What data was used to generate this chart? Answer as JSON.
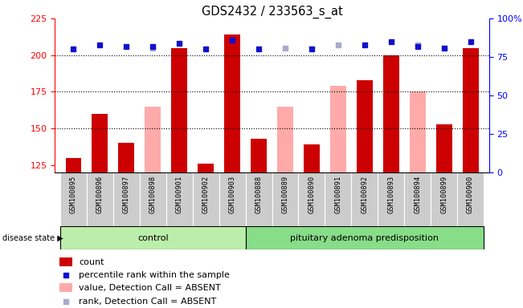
{
  "title": "GDS2432 / 233563_s_at",
  "samples": [
    "GSM100895",
    "GSM100896",
    "GSM100897",
    "GSM100898",
    "GSM100901",
    "GSM100902",
    "GSM100903",
    "GSM100888",
    "GSM100889",
    "GSM100890",
    "GSM100891",
    "GSM100892",
    "GSM100893",
    "GSM100894",
    "GSM100899",
    "GSM100900"
  ],
  "n_control": 7,
  "red_values": [
    130,
    160,
    140,
    null,
    205,
    126,
    214,
    143,
    null,
    139,
    null,
    183,
    200,
    null,
    153,
    205
  ],
  "pink_values": [
    null,
    null,
    null,
    165,
    null,
    null,
    null,
    null,
    165,
    null,
    179,
    null,
    null,
    175,
    null,
    null
  ],
  "blue_values": [
    204,
    207,
    206,
    206,
    208,
    204,
    210,
    204,
    null,
    204,
    null,
    207,
    209,
    206,
    205,
    209
  ],
  "lightblue_values": [
    null,
    null,
    null,
    205,
    null,
    null,
    null,
    null,
    205,
    null,
    207,
    null,
    null,
    207,
    null,
    null
  ],
  "ylim": [
    120,
    225
  ],
  "y2lim": [
    0,
    100
  ],
  "yticks": [
    125,
    150,
    175,
    200,
    225
  ],
  "y2ticks": [
    0,
    25,
    50,
    75,
    100
  ],
  "bar_color_red": "#cc0000",
  "bar_color_pink": "#ffaaaa",
  "dot_color_blue": "#1010cc",
  "dot_color_lightblue": "#aaaacc",
  "sample_bg": "#cccccc",
  "control_color": "#bbeeaa",
  "disease_color": "#88dd88",
  "control_label": "control",
  "disease_label": "pituitary adenoma predisposition",
  "legend_items": [
    "count",
    "percentile rank within the sample",
    "value, Detection Call = ABSENT",
    "rank, Detection Call = ABSENT"
  ]
}
